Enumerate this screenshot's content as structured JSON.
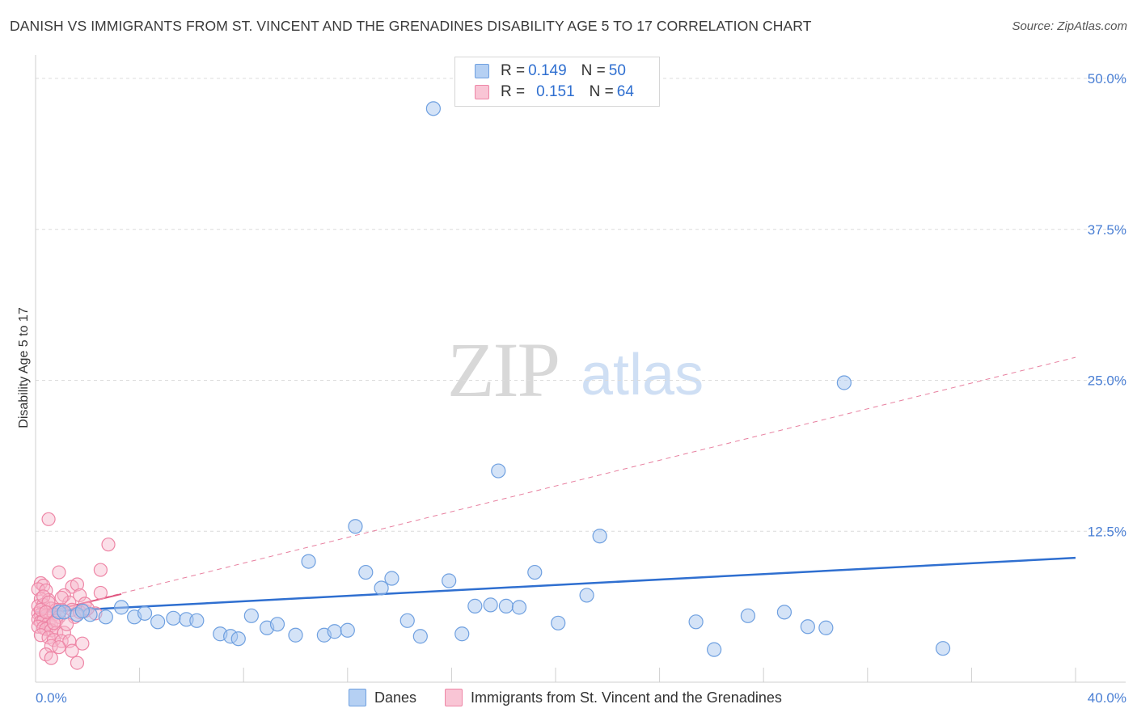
{
  "title": "DANISH VS IMMIGRANTS FROM ST. VINCENT AND THE GRENADINES DISABILITY AGE 5 TO 17 CORRELATION CHART",
  "source": "Source: ZipAtlas.com",
  "watermark": {
    "zip": "ZIP",
    "atlas": "atlas"
  },
  "legend": {
    "rows": [
      {
        "r_label": "R = ",
        "r_value": "0.149",
        "n_label": "N = ",
        "n_value": "50"
      },
      {
        "r_label": "R = ",
        "r_value": "0.151",
        "n_label": "N = ",
        "n_value": "64"
      }
    ]
  },
  "bottom_legend": {
    "series0": "Danes",
    "series1": "Immigrants from St. Vincent and the Grenadines"
  },
  "chart_data": {
    "type": "scatter",
    "title": "DANISH VS IMMIGRANTS FROM ST. VINCENT AND THE GRENADINES DISABILITY AGE 5 TO 17 CORRELATION CHART",
    "xlabel": "",
    "ylabel": "Disability Age 5 to 17",
    "xlim": [
      0,
      40
    ],
    "ylim": [
      0,
      50
    ],
    "x_tick_labels": [
      "0.0%",
      "40.0%"
    ],
    "y_ticks": [
      12.5,
      25.0,
      37.5,
      50.0
    ],
    "y_tick_labels": [
      "12.5%",
      "25.0%",
      "37.5%",
      "50.0%"
    ],
    "grid": true,
    "legend_position": "top-center",
    "colors": {
      "danes_fill": "#a9c8f0",
      "danes_stroke": "#6fa0e0",
      "danes_line": "#2f6fd0",
      "imm_fill": "#f7b8cb",
      "imm_stroke": "#ee86a6",
      "imm_line": "#e0557f"
    },
    "series": [
      {
        "name": "Danes",
        "trend": {
          "x": [
            0,
            40
          ],
          "y": [
            5.8,
            10.3
          ],
          "style": "solid"
        },
        "points": [
          [
            15.3,
            47.5
          ],
          [
            31.1,
            24.8
          ],
          [
            17.8,
            17.5
          ],
          [
            12.3,
            12.9
          ],
          [
            21.7,
            12.1
          ],
          [
            10.5,
            10.0
          ],
          [
            12.7,
            9.1
          ],
          [
            13.7,
            8.6
          ],
          [
            19.2,
            9.1
          ],
          [
            15.9,
            8.4
          ],
          [
            13.3,
            7.8
          ],
          [
            21.2,
            7.2
          ],
          [
            3.3,
            6.2
          ],
          [
            0.9,
            5.8
          ],
          [
            1.6,
            5.6
          ],
          [
            2.1,
            5.6
          ],
          [
            2.7,
            5.4
          ],
          [
            3.8,
            5.4
          ],
          [
            4.2,
            5.7
          ],
          [
            4.7,
            5.0
          ],
          [
            5.3,
            5.3
          ],
          [
            5.8,
            5.2
          ],
          [
            6.2,
            5.1
          ],
          [
            8.3,
            5.5
          ],
          [
            8.9,
            4.5
          ],
          [
            9.3,
            4.8
          ],
          [
            10.0,
            3.9
          ],
          [
            11.1,
            3.9
          ],
          [
            11.5,
            4.2
          ],
          [
            12.0,
            4.3
          ],
          [
            7.1,
            4.0
          ],
          [
            7.5,
            3.8
          ],
          [
            7.8,
            3.6
          ],
          [
            14.3,
            5.1
          ],
          [
            14.8,
            3.8
          ],
          [
            16.4,
            4.0
          ],
          [
            16.9,
            6.3
          ],
          [
            17.5,
            6.4
          ],
          [
            18.1,
            6.3
          ],
          [
            18.6,
            6.2
          ],
          [
            20.1,
            4.9
          ],
          [
            25.4,
            5.0
          ],
          [
            26.1,
            2.7
          ],
          [
            27.4,
            5.5
          ],
          [
            28.8,
            5.8
          ],
          [
            29.7,
            4.6
          ],
          [
            30.4,
            4.5
          ],
          [
            34.9,
            2.8
          ],
          [
            1.1,
            5.8
          ],
          [
            1.8,
            5.9
          ]
        ]
      },
      {
        "name": "Immigrants from St. Vincent and the Grenadines",
        "trend": {
          "x": [
            0,
            40
          ],
          "y": [
            5.6,
            26.9
          ],
          "style": "dashed"
        },
        "points": [
          [
            0.5,
            13.5
          ],
          [
            2.8,
            11.4
          ],
          [
            0.9,
            9.1
          ],
          [
            2.5,
            9.3
          ],
          [
            0.2,
            8.2
          ],
          [
            0.3,
            8.0
          ],
          [
            1.4,
            7.9
          ],
          [
            1.6,
            8.1
          ],
          [
            0.1,
            7.7
          ],
          [
            0.4,
            7.6
          ],
          [
            1.1,
            7.2
          ],
          [
            1.7,
            7.2
          ],
          [
            2.5,
            7.4
          ],
          [
            0.2,
            6.9
          ],
          [
            0.5,
            6.8
          ],
          [
            1.3,
            6.6
          ],
          [
            0.1,
            6.3
          ],
          [
            0.3,
            6.4
          ],
          [
            0.6,
            6.1
          ],
          [
            0.8,
            6.0
          ],
          [
            1.0,
            6.0
          ],
          [
            1.4,
            6.0
          ],
          [
            1.9,
            5.9
          ],
          [
            0.1,
            5.7
          ],
          [
            0.2,
            5.6
          ],
          [
            0.4,
            5.5
          ],
          [
            0.7,
            5.6
          ],
          [
            0.9,
            5.4
          ],
          [
            1.5,
            5.4
          ],
          [
            0.1,
            5.2
          ],
          [
            0.2,
            5.0
          ],
          [
            0.3,
            5.1
          ],
          [
            0.5,
            4.9
          ],
          [
            0.6,
            4.7
          ],
          [
            0.1,
            4.6
          ],
          [
            0.3,
            4.5
          ],
          [
            0.4,
            4.4
          ],
          [
            0.6,
            4.3
          ],
          [
            0.8,
            4.1
          ],
          [
            1.1,
            4.1
          ],
          [
            0.2,
            3.9
          ],
          [
            0.5,
            3.7
          ],
          [
            0.7,
            3.5
          ],
          [
            1.0,
            3.4
          ],
          [
            1.3,
            3.4
          ],
          [
            1.8,
            3.2
          ],
          [
            0.6,
            3.0
          ],
          [
            0.9,
            2.9
          ],
          [
            1.4,
            2.6
          ],
          [
            0.4,
            2.3
          ],
          [
            0.6,
            2.0
          ],
          [
            1.6,
            1.6
          ],
          [
            1.9,
            6.5
          ],
          [
            2.3,
            5.7
          ],
          [
            1.0,
            7.0
          ],
          [
            0.3,
            7.1
          ],
          [
            0.8,
            5.1
          ],
          [
            1.2,
            4.8
          ],
          [
            0.5,
            6.6
          ],
          [
            0.7,
            4.9
          ],
          [
            1.7,
            5.8
          ],
          [
            2.0,
            6.1
          ],
          [
            0.2,
            6.0
          ],
          [
            0.4,
            5.8
          ]
        ]
      }
    ]
  }
}
